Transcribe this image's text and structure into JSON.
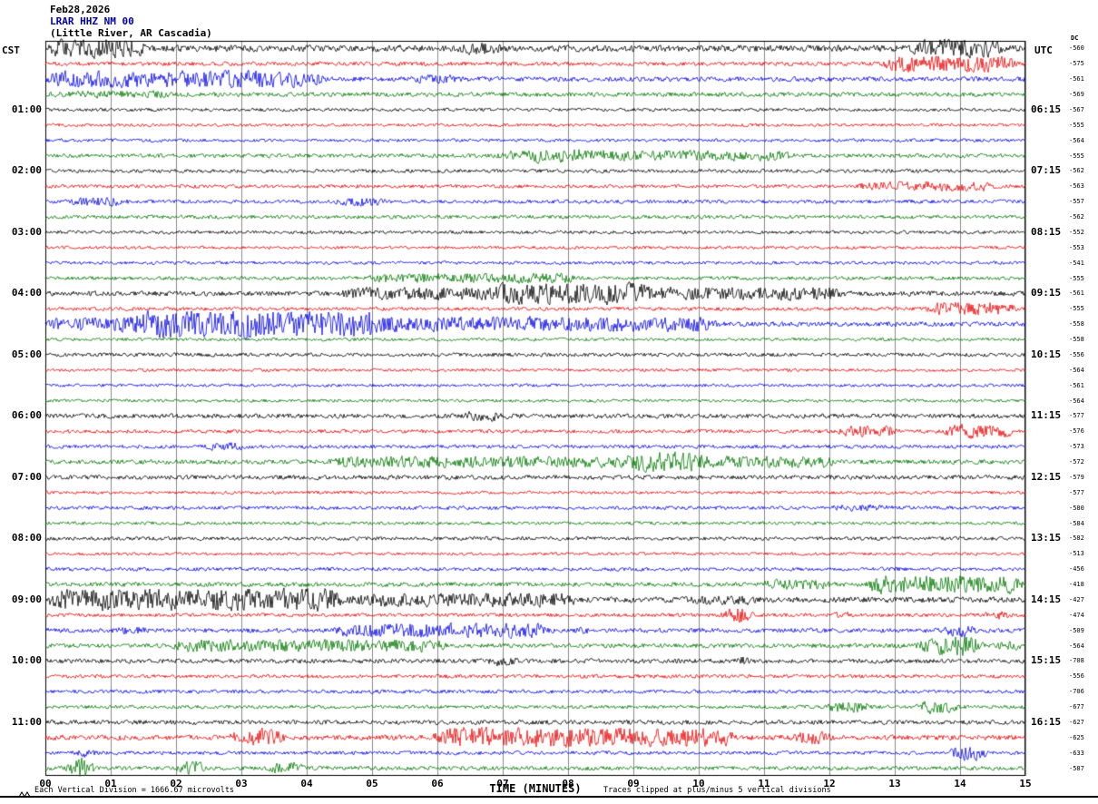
{
  "title": {
    "date": "Feb28,2026",
    "station": "LRAR HHZ NM 00",
    "location": "(Little River, AR Cascadia)"
  },
  "left_axis": {
    "label": "CST",
    "hours": [
      "01:00",
      "02:00",
      "03:00",
      "04:00",
      "05:00",
      "06:00",
      "07:00",
      "08:00",
      "09:00",
      "10:00",
      "11:00"
    ]
  },
  "right_axis": {
    "label": "UTC",
    "hours": [
      "06:15",
      "07:15",
      "08:15",
      "09:15",
      "10:15",
      "11:15",
      "12:15",
      "13:15",
      "14:15",
      "15:15",
      "16:15"
    ]
  },
  "dc_column": {
    "label": "DC"
  },
  "x_axis": {
    "label": "TIME (MINUTES)",
    "ticks": [
      "00",
      "01",
      "02",
      "03",
      "04",
      "05",
      "06",
      "07",
      "08",
      "09",
      "10",
      "11",
      "12",
      "13",
      "14",
      "15"
    ]
  },
  "footer": {
    "left": "Each Vertical Division = 1666.67 microvolts",
    "right": "Traces clipped at plus/minus 5 vertical divisions"
  },
  "colors": {
    "trace": {
      "black": "#000000",
      "red": "#ee0000",
      "blue": "#0000ee",
      "green": "#007700"
    },
    "grid": "#8a8a8a",
    "frame": "#000000",
    "header_station": "#0000aa"
  },
  "chart_data": {
    "type": "line",
    "subtype": "helicorder-seismogram",
    "title": "LRAR HHZ NM 00 (Little River, AR Cascadia) Feb28,2026",
    "xlabel": "TIME (MINUTES)",
    "x_range": [
      0,
      15
    ],
    "rows_per_hour": 4,
    "clip_divisions": 5,
    "volts_per_division": "1666.67 microvolts",
    "rows": [
      {
        "t": "00:00",
        "color": "black",
        "dc": -560,
        "base": 3.2,
        "bursts": [
          [
            0,
            1.6,
            6
          ],
          [
            6.3,
            7.0,
            3
          ],
          [
            13.2,
            14.7,
            6
          ]
        ]
      },
      {
        "t": "00:15",
        "color": "red",
        "dc": -575,
        "base": 2.0,
        "bursts": [
          [
            12.8,
            14.9,
            6
          ]
        ]
      },
      {
        "t": "00:30",
        "color": "blue",
        "dc": -561,
        "base": 2.4,
        "bursts": [
          [
            0,
            4.3,
            6
          ],
          [
            5.6,
            6.4,
            2
          ]
        ]
      },
      {
        "t": "00:45",
        "color": "green",
        "dc": -569,
        "base": 2.2,
        "bursts": [
          [
            0,
            2.0,
            1.5
          ]
        ]
      },
      {
        "t": "01:00",
        "color": "black",
        "dc": -567,
        "base": 1.6,
        "bursts": []
      },
      {
        "t": "01:15",
        "color": "red",
        "dc": -555,
        "base": 1.5,
        "bursts": []
      },
      {
        "t": "01:30",
        "color": "blue",
        "dc": -564,
        "base": 1.6,
        "bursts": []
      },
      {
        "t": "01:45",
        "color": "green",
        "dc": -555,
        "base": 2.0,
        "bursts": [
          [
            6.9,
            11.5,
            3
          ],
          [
            7.3,
            8.6,
            2
          ]
        ]
      },
      {
        "t": "02:00",
        "color": "black",
        "dc": -562,
        "base": 1.8,
        "bursts": []
      },
      {
        "t": "02:15",
        "color": "red",
        "dc": -563,
        "base": 1.8,
        "bursts": [
          [
            12.4,
            14.6,
            3
          ]
        ]
      },
      {
        "t": "02:30",
        "color": "blue",
        "dc": -557,
        "base": 1.8,
        "bursts": [
          [
            0.3,
            1.3,
            3
          ],
          [
            4.4,
            5.3,
            2.5
          ]
        ]
      },
      {
        "t": "02:45",
        "color": "green",
        "dc": -562,
        "base": 1.8,
        "bursts": []
      },
      {
        "t": "03:00",
        "color": "black",
        "dc": -552,
        "base": 1.6,
        "bursts": []
      },
      {
        "t": "03:15",
        "color": "red",
        "dc": -553,
        "base": 1.5,
        "bursts": []
      },
      {
        "t": "03:30",
        "color": "blue",
        "dc": -541,
        "base": 1.6,
        "bursts": []
      },
      {
        "t": "03:45",
        "color": "green",
        "dc": -555,
        "base": 1.8,
        "bursts": [
          [
            4.9,
            8.2,
            3
          ]
        ]
      },
      {
        "t": "04:00",
        "color": "black",
        "dc": -561,
        "base": 2.4,
        "bursts": [
          [
            4.5,
            12.3,
            4
          ],
          [
            6.8,
            9.3,
            4
          ]
        ]
      },
      {
        "t": "04:15",
        "color": "red",
        "dc": -555,
        "base": 1.8,
        "bursts": [
          [
            13.4,
            14.9,
            5
          ]
        ]
      },
      {
        "t": "04:30",
        "color": "blue",
        "dc": -558,
        "base": 2.4,
        "bursts": [
          [
            0,
            10.3,
            5
          ],
          [
            1.3,
            5.2,
            6
          ]
        ]
      },
      {
        "t": "04:45",
        "color": "green",
        "dc": -558,
        "base": 1.6,
        "bursts": []
      },
      {
        "t": "05:00",
        "color": "black",
        "dc": -556,
        "base": 1.8,
        "bursts": []
      },
      {
        "t": "05:15",
        "color": "red",
        "dc": -564,
        "base": 1.5,
        "bursts": []
      },
      {
        "t": "05:30",
        "color": "blue",
        "dc": -561,
        "base": 1.5,
        "bursts": []
      },
      {
        "t": "05:45",
        "color": "green",
        "dc": -564,
        "base": 1.5,
        "bursts": []
      },
      {
        "t": "06:00",
        "color": "black",
        "dc": -577,
        "base": 2.2,
        "bursts": [
          [
            6.3,
            7.1,
            3
          ]
        ]
      },
      {
        "t": "06:15",
        "color": "red",
        "dc": -576,
        "base": 1.8,
        "bursts": [
          [
            12.1,
            13.1,
            4
          ],
          [
            13.7,
            14.9,
            5
          ]
        ]
      },
      {
        "t": "06:30",
        "color": "blue",
        "dc": -573,
        "base": 1.8,
        "bursts": [
          [
            2.4,
            3.1,
            2.5
          ]
        ]
      },
      {
        "t": "06:45",
        "color": "green",
        "dc": -572,
        "base": 2.2,
        "bursts": [
          [
            4.3,
            12.2,
            3.5
          ],
          [
            8.8,
            10.2,
            4
          ]
        ]
      },
      {
        "t": "07:00",
        "color": "black",
        "dc": -579,
        "base": 2.2,
        "bursts": []
      },
      {
        "t": "07:15",
        "color": "red",
        "dc": -577,
        "base": 1.5,
        "bursts": []
      },
      {
        "t": "07:30",
        "color": "blue",
        "dc": -580,
        "base": 1.8,
        "bursts": [
          [
            12,
            13,
            1.5
          ]
        ]
      },
      {
        "t": "07:45",
        "color": "green",
        "dc": -584,
        "base": 1.6,
        "bursts": []
      },
      {
        "t": "08:00",
        "color": "black",
        "dc": -582,
        "base": 1.8,
        "bursts": []
      },
      {
        "t": "08:15",
        "color": "red",
        "dc": -513,
        "base": 1.5,
        "bursts": []
      },
      {
        "t": "08:30",
        "color": "blue",
        "dc": -456,
        "base": 1.8,
        "bursts": []
      },
      {
        "t": "08:45",
        "color": "green",
        "dc": -418,
        "base": 2.2,
        "bursts": [
          [
            10.9,
            12.1,
            3
          ],
          [
            12.5,
            15,
            7
          ]
        ]
      },
      {
        "t": "09:00",
        "color": "black",
        "dc": -427,
        "base": 2.8,
        "bursts": [
          [
            0,
            4.6,
            8
          ],
          [
            4.6,
            8.2,
            4
          ],
          [
            9.8,
            11,
            2
          ]
        ]
      },
      {
        "t": "09:15",
        "color": "red",
        "dc": -474,
        "base": 1.8,
        "bursts": [
          [
            10.3,
            10.9,
            6
          ],
          [
            12,
            12.4,
            2
          ],
          [
            14.3,
            14.8,
            3
          ]
        ]
      },
      {
        "t": "09:30",
        "color": "blue",
        "dc": -509,
        "base": 2.2,
        "bursts": [
          [
            1,
            1.6,
            2
          ],
          [
            4.4,
            7.8,
            5
          ],
          [
            8,
            8.4,
            2
          ],
          [
            13.7,
            14.3,
            4
          ]
        ]
      },
      {
        "t": "09:45",
        "color": "green",
        "dc": -564,
        "base": 2.2,
        "bursts": [
          [
            1.9,
            6.2,
            4
          ],
          [
            13.3,
            14.4,
            8
          ],
          [
            14.5,
            15,
            4
          ]
        ]
      },
      {
        "t": "10:00",
        "color": "black",
        "dc": -708,
        "base": 2.2,
        "bursts": [
          [
            6.7,
            7.3,
            3
          ],
          [
            10.5,
            10.9,
            3
          ]
        ]
      },
      {
        "t": "10:15",
        "color": "red",
        "dc": -556,
        "base": 1.8,
        "bursts": []
      },
      {
        "t": "10:30",
        "color": "blue",
        "dc": -706,
        "base": 1.8,
        "bursts": []
      },
      {
        "t": "10:45",
        "color": "green",
        "dc": -677,
        "base": 1.8,
        "bursts": [
          [
            11.9,
            12.7,
            4
          ],
          [
            13.3,
            14,
            5
          ]
        ]
      },
      {
        "t": "11:00",
        "color": "black",
        "dc": -627,
        "base": 2.2,
        "bursts": []
      },
      {
        "t": "11:15",
        "color": "red",
        "dc": -625,
        "base": 2.5,
        "bursts": [
          [
            2.8,
            3.7,
            7
          ],
          [
            5.9,
            10.6,
            7
          ],
          [
            11.4,
            12.1,
            4
          ]
        ]
      },
      {
        "t": "11:30",
        "color": "blue",
        "dc": -633,
        "base": 1.8,
        "bursts": [
          [
            0.4,
            0.8,
            3
          ],
          [
            13.8,
            14.5,
            6
          ]
        ]
      },
      {
        "t": "11:45",
        "color": "green",
        "dc": -587,
        "base": 2.0,
        "bursts": [
          [
            0.3,
            0.8,
            9
          ],
          [
            2.0,
            2.5,
            6
          ],
          [
            3.4,
            4.0,
            5
          ]
        ]
      }
    ]
  }
}
